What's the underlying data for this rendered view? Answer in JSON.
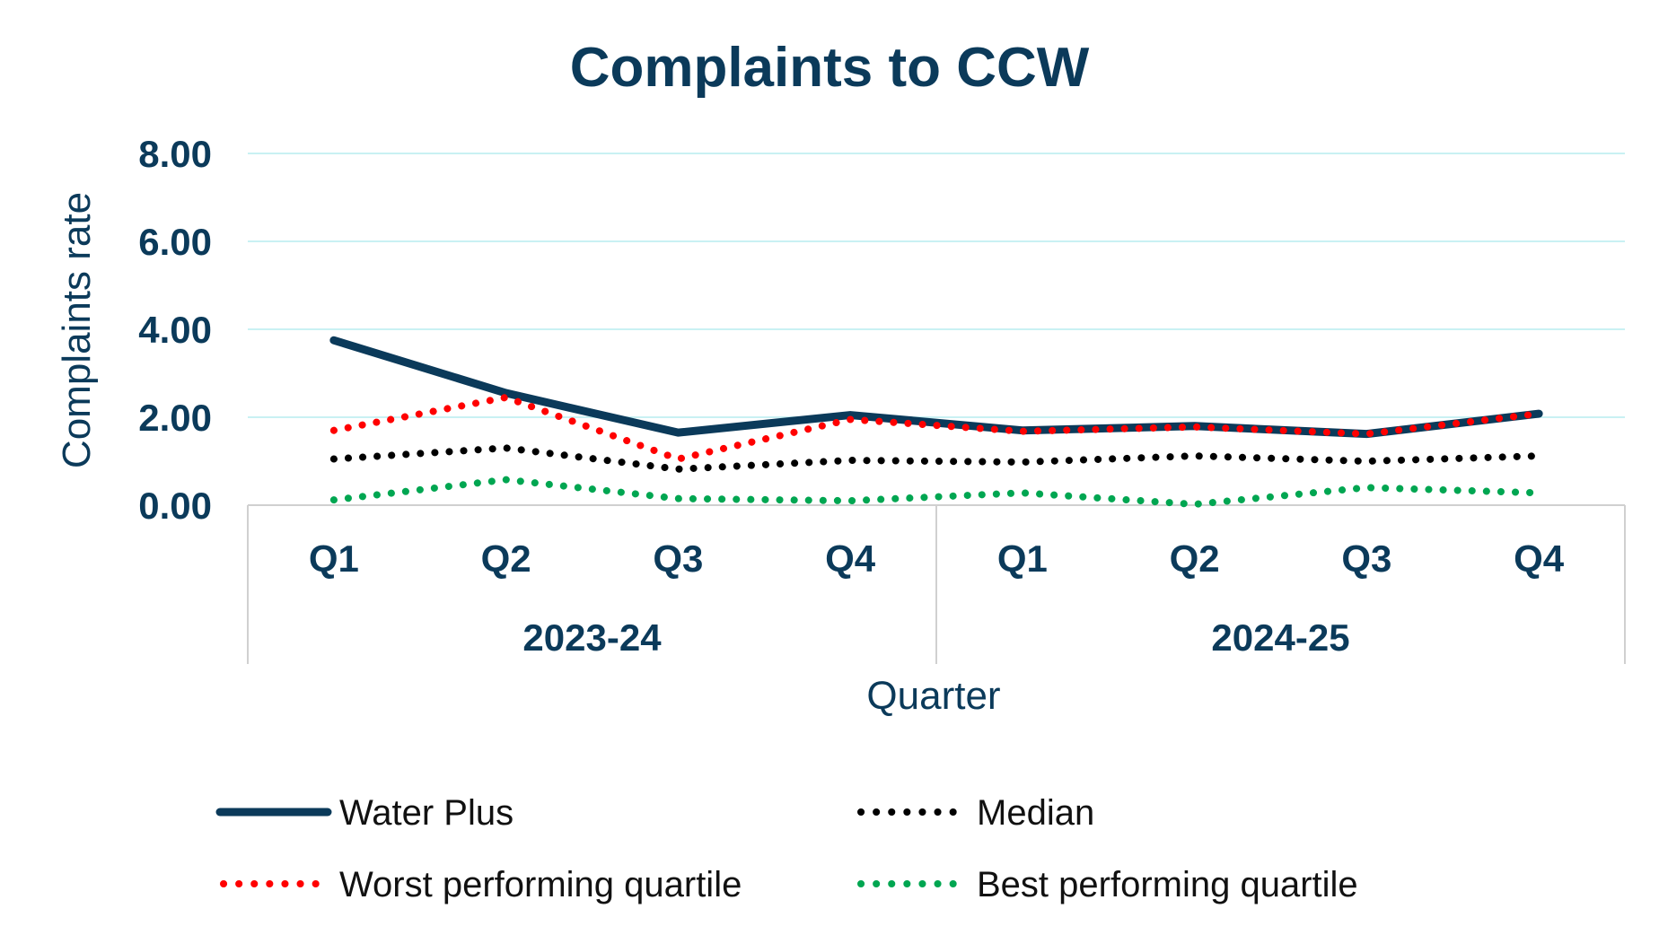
{
  "chart_data": {
    "type": "line",
    "title": "Complaints to CCW",
    "xlabel": "Quarter",
    "ylabel": "Complaints rate",
    "ylim": [
      0,
      8
    ],
    "yticks": [
      "0.00",
      "2.00",
      "4.00",
      "6.00",
      "8.00"
    ],
    "categories": [
      "Q1",
      "Q2",
      "Q3",
      "Q4",
      "Q1",
      "Q2",
      "Q3",
      "Q4"
    ],
    "groups": [
      {
        "label": "2023-24",
        "categories": [
          "Q1",
          "Q2",
          "Q3",
          "Q4"
        ]
      },
      {
        "label": "2024-25",
        "categories": [
          "Q1",
          "Q2",
          "Q3",
          "Q4"
        ]
      }
    ],
    "grid": true,
    "legend_position": "bottom",
    "series": [
      {
        "name": "Water Plus",
        "color": "#0b3a5a",
        "style": "solid",
        "values": [
          3.75,
          2.55,
          1.65,
          2.05,
          1.7,
          1.8,
          1.62,
          2.08
        ]
      },
      {
        "name": "Median",
        "color": "#000000",
        "style": "dotted",
        "values": [
          1.05,
          1.3,
          0.82,
          1.02,
          0.98,
          1.12,
          1.0,
          1.12
        ]
      },
      {
        "name": "Worst performing quartile",
        "color": "#ff0000",
        "style": "dotted",
        "values": [
          1.7,
          2.45,
          1.05,
          1.95,
          1.68,
          1.78,
          1.62,
          2.08
        ]
      },
      {
        "name": "Best performing quartile",
        "color": "#00a651",
        "style": "dotted",
        "values": [
          0.12,
          0.58,
          0.15,
          0.1,
          0.28,
          0.02,
          0.4,
          0.28
        ]
      }
    ]
  }
}
